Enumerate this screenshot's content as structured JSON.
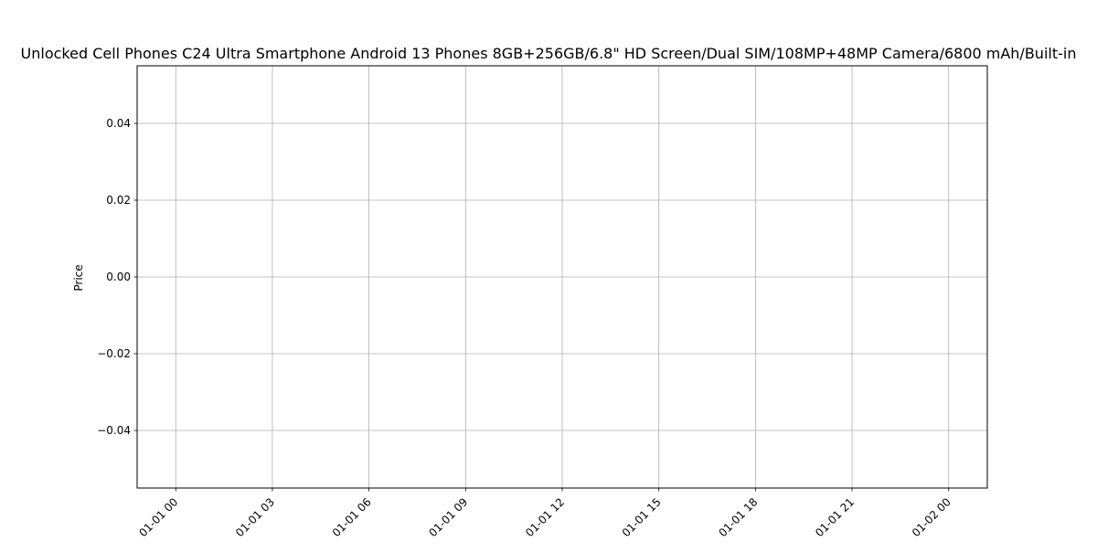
{
  "chart_data": {
    "type": "line",
    "title": "Unlocked Cell Phones C24 Ultra Smartphone Android 13 Phones 8GB+256GB/6.8\" HD Screen/Dual SIM/108MP+48MP Camera/6800 mAh/Built-in",
    "xlabel": "",
    "ylabel": "Price",
    "x_tick_labels": [
      "01-01 00",
      "01-01 03",
      "01-01 06",
      "01-01 09",
      "01-01 12",
      "01-01 15",
      "01-01 18",
      "01-01 21",
      "01-02 00"
    ],
    "y_tick_labels": [
      "−0.04",
      "−0.02",
      "0.00",
      "0.02",
      "0.04"
    ],
    "y_ticks": [
      -0.04,
      -0.02,
      0.0,
      0.02,
      0.04
    ],
    "ylim": [
      -0.055,
      0.055
    ],
    "xlim_hours": [
      -1.2,
      25.2
    ],
    "grid": true,
    "series": []
  }
}
